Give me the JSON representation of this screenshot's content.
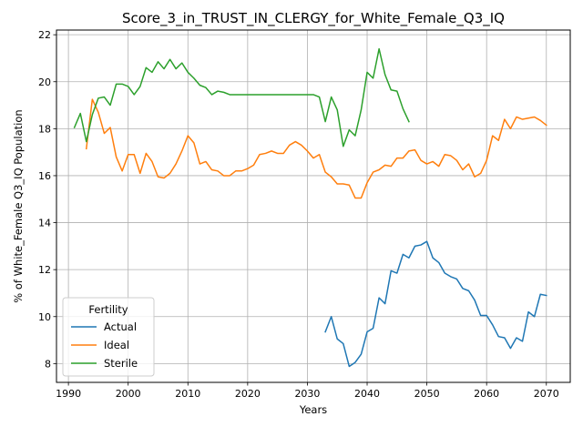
{
  "chart_data": {
    "type": "line",
    "title": "Score_3_in_TRUST_IN_CLERGY_for_White_Female_Q3_IQ",
    "xlabel": "Years",
    "ylabel": "% of White_Female Q3_IQ Population",
    "xlim": [
      1988,
      2074
    ],
    "ylim": [
      7.2,
      22.2
    ],
    "xticks": [
      1990,
      2000,
      2010,
      2020,
      2030,
      2040,
      2050,
      2060,
      2070
    ],
    "yticks": [
      8,
      10,
      12,
      14,
      16,
      18,
      20,
      22
    ],
    "grid": true,
    "legend": {
      "title": "Fertility",
      "placement": "lower-left"
    },
    "series": [
      {
        "name": "Actual",
        "color": "#1f77b4",
        "x": [
          2033,
          2034,
          2035,
          2036,
          2037,
          2038,
          2039,
          2040,
          2041,
          2042,
          2043,
          2044,
          2045,
          2046,
          2047,
          2048,
          2049,
          2050,
          2051,
          2052,
          2053,
          2054,
          2055,
          2056,
          2057,
          2058,
          2059,
          2060,
          2061,
          2062,
          2063,
          2064,
          2065,
          2066,
          2067,
          2068,
          2069,
          2070
        ],
        "values": [
          9.35,
          10.0,
          9.05,
          8.85,
          7.88,
          8.05,
          8.4,
          9.35,
          9.5,
          10.8,
          10.55,
          11.95,
          11.85,
          12.65,
          12.5,
          13.0,
          13.05,
          13.2,
          12.5,
          12.3,
          11.85,
          11.7,
          11.6,
          11.2,
          11.1,
          10.7,
          10.05,
          10.05,
          9.65,
          9.15,
          9.1,
          8.65,
          9.1,
          8.95,
          10.2,
          10.0,
          10.95,
          10.9
        ]
      },
      {
        "name": "Ideal",
        "color": "#ff7f0e",
        "x": [
          1993,
          1994,
          1995,
          1996,
          1997,
          1998,
          1999,
          2000,
          2001,
          2002,
          2003,
          2004,
          2005,
          2006,
          2007,
          2008,
          2009,
          2010,
          2011,
          2012,
          2013,
          2014,
          2015,
          2016,
          2017,
          2018,
          2019,
          2020,
          2021,
          2022,
          2023,
          2024,
          2025,
          2026,
          2027,
          2028,
          2029,
          2030,
          2031,
          2032,
          2033,
          2034,
          2035,
          2036,
          2037,
          2038,
          2039,
          2040,
          2041,
          2042,
          2043,
          2044,
          2045,
          2046,
          2047,
          2048,
          2049,
          2050,
          2051,
          2052,
          2053,
          2054,
          2055,
          2056,
          2057,
          2058,
          2059,
          2060,
          2061,
          2062,
          2063,
          2064,
          2065,
          2066,
          2067,
          2068,
          2069,
          2070
        ],
        "values": [
          17.15,
          19.25,
          18.7,
          17.8,
          18.05,
          16.8,
          16.2,
          16.9,
          16.9,
          16.1,
          16.95,
          16.6,
          15.95,
          15.9,
          16.1,
          16.5,
          17.05,
          17.7,
          17.4,
          16.5,
          16.6,
          16.25,
          16.2,
          16.0,
          16.0,
          16.2,
          16.2,
          16.3,
          16.45,
          16.9,
          16.95,
          17.05,
          16.95,
          16.95,
          17.3,
          17.45,
          17.3,
          17.05,
          16.75,
          16.9,
          16.15,
          15.95,
          15.65,
          15.65,
          15.6,
          15.05,
          15.05,
          15.7,
          16.15,
          16.25,
          16.45,
          16.4,
          16.75,
          16.75,
          17.05,
          17.1,
          16.65,
          16.5,
          16.6,
          16.4,
          16.9,
          16.85,
          16.65,
          16.25,
          16.5,
          15.95,
          16.1,
          16.65,
          17.7,
          17.5,
          18.4,
          18.0,
          18.5,
          18.4,
          18.45,
          18.5,
          18.35,
          18.15
        ]
      },
      {
        "name": "Sterile",
        "color": "#2ca02c",
        "x": [
          1991,
          1992,
          1993,
          1994,
          1995,
          1996,
          1997,
          1998,
          1999,
          2000,
          2001,
          2002,
          2003,
          2004,
          2005,
          2006,
          2007,
          2008,
          2009,
          2010,
          2011,
          2012,
          2013,
          2014,
          2015,
          2016,
          2017,
          2018,
          2019,
          2020,
          2021,
          2022,
          2023,
          2024,
          2025,
          2026,
          2027,
          2028,
          2029,
          2030,
          2031,
          2032,
          2033,
          2034,
          2035,
          2036,
          2037,
          2038,
          2039,
          2040,
          2041,
          2042,
          2043,
          2044,
          2045,
          2046,
          2047
        ],
        "values": [
          18.05,
          18.65,
          17.45,
          18.6,
          19.3,
          19.35,
          19.0,
          19.9,
          19.9,
          19.8,
          19.45,
          19.8,
          20.6,
          20.4,
          20.85,
          20.55,
          20.95,
          20.55,
          20.8,
          20.4,
          20.15,
          19.85,
          19.75,
          19.45,
          19.6,
          19.55,
          19.45,
          19.45,
          19.45,
          19.45,
          19.45,
          19.45,
          19.45,
          19.45,
          19.45,
          19.45,
          19.45,
          19.45,
          19.45,
          19.45,
          19.45,
          19.35,
          18.3,
          19.35,
          18.8,
          17.25,
          17.95,
          17.7,
          18.8,
          20.4,
          20.15,
          21.4,
          20.3,
          19.65,
          19.6,
          18.85,
          18.3
        ]
      }
    ]
  }
}
